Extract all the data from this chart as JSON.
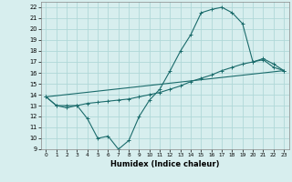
{
  "xlabel": "Humidex (Indice chaleur)",
  "background_color": "#d7eeee",
  "grid_color": "#b0d8d8",
  "line_color": "#1a6b6b",
  "xlim": [
    -0.5,
    23.5
  ],
  "ylim": [
    9,
    22.5
  ],
  "xticks": [
    0,
    1,
    2,
    3,
    4,
    5,
    6,
    7,
    8,
    9,
    10,
    11,
    12,
    13,
    14,
    15,
    16,
    17,
    18,
    19,
    20,
    21,
    22,
    23
  ],
  "yticks": [
    9,
    10,
    11,
    12,
    13,
    14,
    15,
    16,
    17,
    18,
    19,
    20,
    21,
    22
  ],
  "curve1_x": [
    0,
    1,
    2,
    3,
    4,
    5,
    6,
    7,
    8,
    9,
    10,
    11,
    12,
    13,
    14,
    15,
    16,
    17,
    18,
    19,
    20,
    21,
    22,
    23
  ],
  "curve1_y": [
    13.8,
    13.0,
    12.8,
    13.0,
    11.8,
    10.0,
    10.2,
    9.0,
    9.8,
    12.0,
    13.5,
    14.5,
    16.2,
    18.0,
    19.5,
    21.5,
    21.8,
    22.0,
    21.5,
    20.5,
    17.0,
    17.2,
    16.5,
    16.2
  ],
  "curve2_x": [
    0,
    23
  ],
  "curve2_y": [
    13.8,
    16.2
  ],
  "curve3_x": [
    0,
    1,
    2,
    3,
    4,
    5,
    6,
    7,
    8,
    9,
    10,
    11,
    12,
    13,
    14,
    15,
    16,
    17,
    18,
    19,
    20,
    21,
    22,
    23
  ],
  "curve3_y": [
    13.8,
    13.0,
    13.0,
    13.0,
    13.2,
    13.3,
    13.4,
    13.5,
    13.6,
    13.8,
    14.0,
    14.2,
    14.5,
    14.8,
    15.2,
    15.5,
    15.8,
    16.2,
    16.5,
    16.8,
    17.0,
    17.3,
    16.8,
    16.2
  ]
}
